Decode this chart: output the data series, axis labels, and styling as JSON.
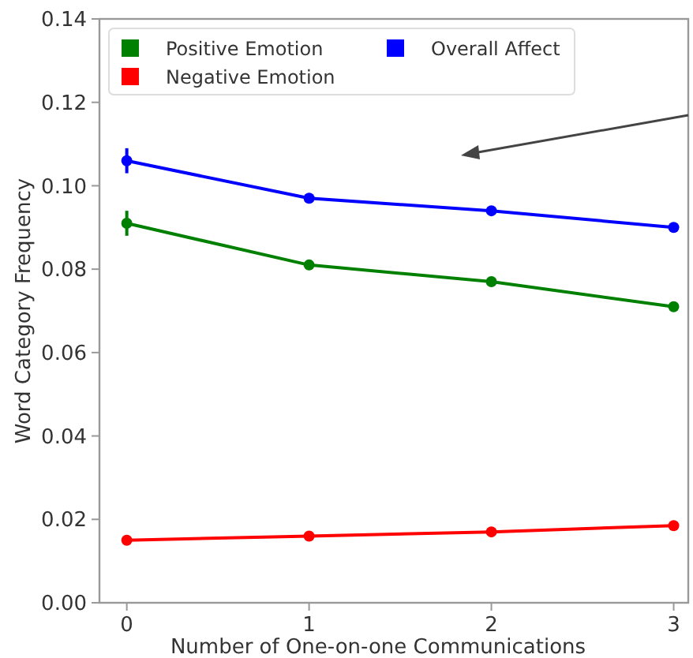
{
  "chart_data": {
    "type": "line",
    "xlabel": "Number of One-on-one Communications",
    "ylabel": "Word Category Frequency",
    "x": [
      0,
      1,
      2,
      3
    ],
    "xlim": [
      -0.15,
      3.08
    ],
    "xticks": [
      0,
      1,
      2,
      3
    ],
    "ylim": [
      0,
      0.14
    ],
    "yticks": [
      {
        "value": 0,
        "label": "0.00"
      },
      {
        "value": 0.02,
        "label": "0.02"
      },
      {
        "value": 0.04,
        "label": "0.04"
      },
      {
        "value": 0.06,
        "label": "0.06"
      },
      {
        "value": 0.08,
        "label": "0.08"
      },
      {
        "value": 0.1,
        "label": "0.10"
      },
      {
        "value": 0.12,
        "label": "0.12"
      },
      {
        "value": 0.14,
        "label": "0.14"
      }
    ],
    "series": [
      {
        "name": "Positive Emotion",
        "color": "#008000",
        "values": [
          0.091,
          0.081,
          0.077,
          0.071
        ],
        "errors": [
          0.003,
          null,
          null,
          null
        ]
      },
      {
        "name": "Negative Emotion",
        "color": "#ff0000",
        "values": [
          0.015,
          0.016,
          0.017,
          0.0185
        ]
      },
      {
        "name": "Overall Affect",
        "color": "#0000ff",
        "values": [
          0.106,
          0.097,
          0.094,
          0.09
        ],
        "errors": [
          0.003,
          null,
          null,
          null
        ]
      }
    ],
    "legend": "top left",
    "marker": "circle",
    "line_style": "solid",
    "grid": false
  }
}
